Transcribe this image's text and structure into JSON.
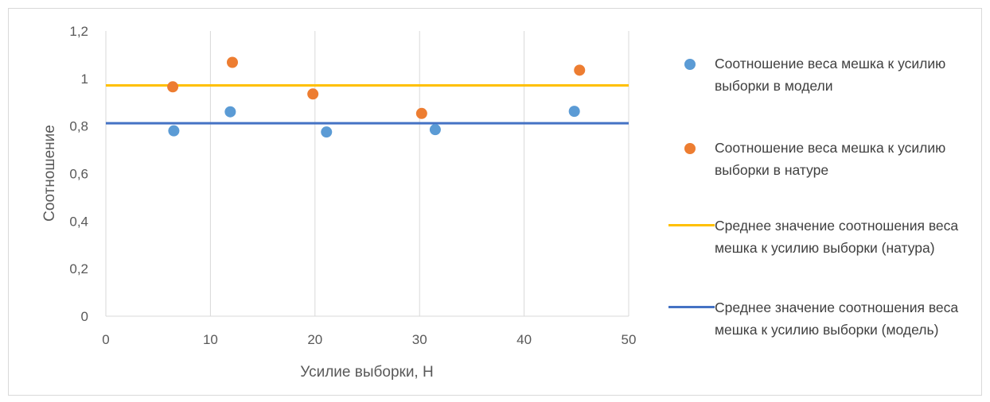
{
  "chart_data": {
    "type": "scatter",
    "title": "",
    "xlabel": "Усилие выборки,  Н",
    "ylabel": "Соотношение",
    "xlim": [
      0,
      50
    ],
    "ylim": [
      0,
      1.2
    ],
    "x_ticks": [
      "0",
      "10",
      "20",
      "30",
      "40",
      "50"
    ],
    "y_ticks": [
      "0",
      "0,2",
      "0,4",
      "0,6",
      "0,8",
      "1",
      "1,2"
    ],
    "grid": "vertical",
    "legend_position": "right",
    "series": [
      {
        "name": "Соотношение веса мешка к усилию выборки в модели",
        "kind": "points",
        "color": "#5B9BD5",
        "points": [
          [
            6.5,
            0.78
          ],
          [
            11.9,
            0.86
          ],
          [
            21.1,
            0.775
          ],
          [
            31.5,
            0.785
          ],
          [
            44.8,
            0.862
          ]
        ]
      },
      {
        "name": "Соотношение веса мешка к усилию выборки в натуре",
        "kind": "points",
        "color": "#ED7D31",
        "points": [
          [
            6.4,
            0.965
          ],
          [
            12.1,
            1.068
          ],
          [
            19.8,
            0.935
          ],
          [
            30.2,
            0.853
          ],
          [
            45.3,
            1.035
          ]
        ]
      },
      {
        "name": "Среднее значение соотношения веса мешка к усилию выборки (натура)",
        "kind": "hline",
        "color": "#FFC000",
        "value": 0.971
      },
      {
        "name": "Среднее значение соотношения веса мешка к усилию выборки (модель)",
        "kind": "hline",
        "color": "#4472C4",
        "value": 0.812
      }
    ]
  }
}
